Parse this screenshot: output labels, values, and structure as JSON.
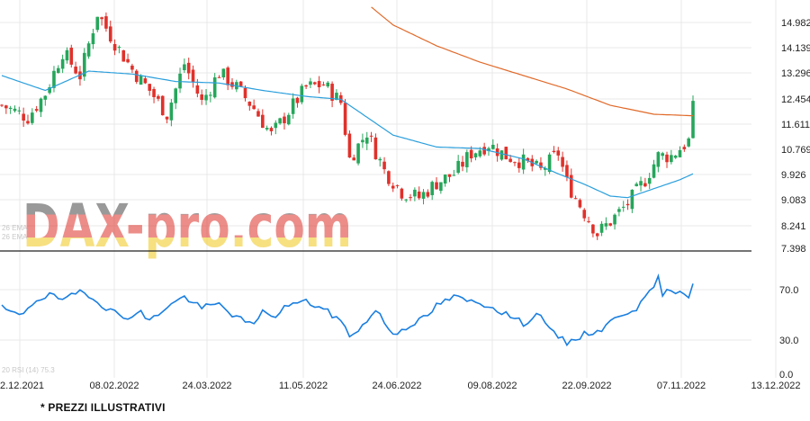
{
  "footnote": "* PREZZI ILLUSTRATIVI",
  "watermark": "DAX-pro.com",
  "colors": {
    "bull": "#26a65b",
    "bear": "#e0312b",
    "ema_fast": "#2b9fdc",
    "ema_slow": "#e06a2a",
    "rsi": "#1a7fe0",
    "grid": "#e8e8e8",
    "divider": "#222222"
  },
  "chart_data": [
    {
      "type": "candlestick",
      "title": "",
      "y_ticks": [
        "14.982",
        "14.139",
        "13.296",
        "12.454",
        "11.611",
        "10.769",
        "9.926",
        "9.083",
        "8.241",
        "7.398"
      ],
      "x_ticks": [
        "2.12.2021",
        "08.02.2022",
        "24.03.2022",
        "11.05.2022",
        "24.06.2022",
        "09.08.2022",
        "22.09.2022",
        "07.11.2022",
        "13.12.2022"
      ],
      "ylim": [
        7.398,
        15.5
      ],
      "legend_labels_faint": [
        "26 EMA",
        "26 EMA"
      ],
      "close_anchors": [
        [
          0,
          12.2
        ],
        [
          6,
          11.8
        ],
        [
          10,
          12.6
        ],
        [
          14,
          14.0
        ],
        [
          18,
          13.2
        ],
        [
          22,
          15.3
        ],
        [
          26,
          14.3
        ],
        [
          30,
          13.4
        ],
        [
          34,
          12.7
        ],
        [
          38,
          11.9
        ],
        [
          42,
          13.6
        ],
        [
          46,
          12.3
        ],
        [
          50,
          13.3
        ],
        [
          54,
          12.8
        ],
        [
          58,
          12.1
        ],
        [
          62,
          11.2
        ],
        [
          66,
          12.0
        ],
        [
          70,
          12.8
        ],
        [
          74,
          12.9
        ],
        [
          78,
          12.3
        ],
        [
          80,
          10.4
        ],
        [
          84,
          11.3
        ],
        [
          88,
          10.0
        ],
        [
          92,
          9.3
        ],
        [
          96,
          9.1
        ],
        [
          100,
          9.6
        ],
        [
          104,
          9.9
        ],
        [
          108,
          10.6
        ],
        [
          112,
          10.9
        ],
        [
          116,
          10.5
        ],
        [
          120,
          10.3
        ],
        [
          124,
          10.0
        ],
        [
          128,
          10.6
        ],
        [
          130,
          9.6
        ],
        [
          134,
          8.6
        ],
        [
          137,
          7.9
        ],
        [
          140,
          8.3
        ],
        [
          144,
          8.9
        ],
        [
          148,
          9.7
        ],
        [
          151,
          10.5
        ],
        [
          154,
          10.5
        ],
        [
          158,
          11.0
        ],
        [
          159,
          12.35
        ]
      ],
      "series": [
        {
          "name": "",
          "kind": "ema_fast",
          "points": [
            [
              0,
              13.2
            ],
            [
              10,
              12.7
            ],
            [
              20,
              13.35
            ],
            [
              30,
              13.25
            ],
            [
              40,
              13.0
            ],
            [
              50,
              12.95
            ],
            [
              60,
              12.7
            ],
            [
              70,
              12.5
            ],
            [
              78,
              12.4
            ],
            [
              84,
              11.8
            ],
            [
              90,
              11.2
            ],
            [
              100,
              10.8
            ],
            [
              110,
              10.75
            ],
            [
              120,
              10.4
            ],
            [
              128,
              9.9
            ],
            [
              134,
              9.55
            ],
            [
              140,
              9.15
            ],
            [
              144,
              9.1
            ],
            [
              148,
              9.3
            ],
            [
              152,
              9.5
            ],
            [
              156,
              9.7
            ],
            [
              159,
              9.9
            ]
          ]
        },
        {
          "name": "",
          "kind": "ema_slow",
          "points": [
            [
              85,
              15.5
            ],
            [
              90,
              14.9
            ],
            [
              100,
              14.2
            ],
            [
              110,
              13.65
            ],
            [
              120,
              13.2
            ],
            [
              130,
              12.75
            ],
            [
              140,
              12.2
            ],
            [
              150,
              11.9
            ],
            [
              159,
              11.85
            ]
          ]
        }
      ]
    },
    {
      "type": "line",
      "title": "",
      "y_ticks": [
        "70.0",
        "30.0",
        "0.0"
      ],
      "ylim": [
        0,
        90
      ],
      "legend_label_faint": "20 RSI (14) 75.3",
      "series": [
        {
          "name": "",
          "points": [
            [
              0,
              55
            ],
            [
              4,
              48
            ],
            [
              8,
              62
            ],
            [
              12,
              66
            ],
            [
              14,
              60
            ],
            [
              18,
              69
            ],
            [
              20,
              66
            ],
            [
              24,
              55
            ],
            [
              28,
              47
            ],
            [
              32,
              51
            ],
            [
              34,
              44
            ],
            [
              38,
              56
            ],
            [
              42,
              64
            ],
            [
              46,
              55
            ],
            [
              50,
              58
            ],
            [
              54,
              47
            ],
            [
              58,
              40
            ],
            [
              60,
              55
            ],
            [
              62,
              46
            ],
            [
              66,
              58
            ],
            [
              70,
              60
            ],
            [
              74,
              54
            ],
            [
              78,
              44
            ],
            [
              80,
              32
            ],
            [
              84,
              43
            ],
            [
              86,
              54
            ],
            [
              88,
              43
            ],
            [
              90,
              33
            ],
            [
              94,
              41
            ],
            [
              98,
              48
            ],
            [
              100,
              57
            ],
            [
              104,
              64
            ],
            [
              108,
              60
            ],
            [
              112,
              57
            ],
            [
              116,
              50
            ],
            [
              120,
              42
            ],
            [
              124,
              51
            ],
            [
              126,
              36
            ],
            [
              130,
              26
            ],
            [
              134,
              33
            ],
            [
              138,
              37
            ],
            [
              142,
              49
            ],
            [
              146,
              55
            ],
            [
              148,
              62
            ],
            [
              150,
              73
            ],
            [
              151,
              79
            ],
            [
              152,
              67
            ],
            [
              156,
              70
            ],
            [
              158,
              65
            ],
            [
              159,
              75
            ]
          ]
        }
      ]
    }
  ]
}
